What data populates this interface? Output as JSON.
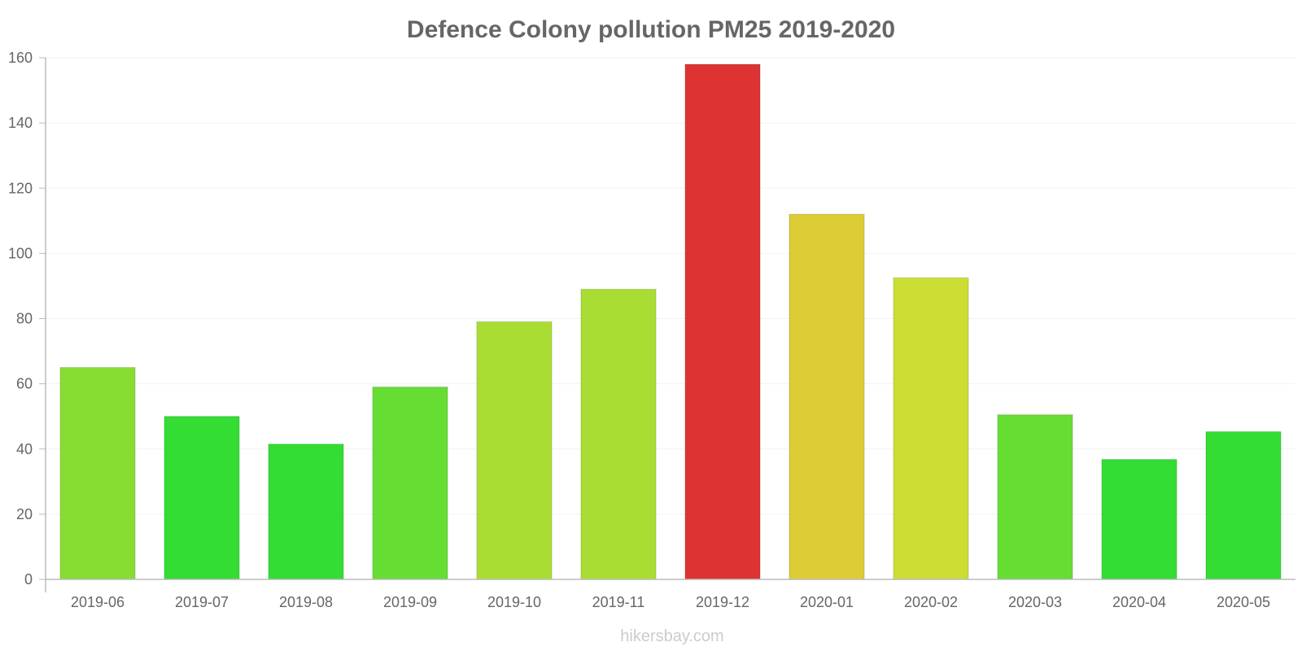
{
  "chart_data": {
    "type": "bar",
    "title": "Defence Colony pollution PM25 2019-2020",
    "xlabel": "",
    "ylabel": "",
    "ylim": [
      0,
      160
    ],
    "yticks": [
      0,
      20,
      40,
      60,
      80,
      100,
      120,
      140,
      160
    ],
    "grid": true,
    "categories": [
      "2019-06",
      "2019-07",
      "2019-08",
      "2019-09",
      "2019-10",
      "2019-11",
      "2019-12",
      "2020-01",
      "2020-02",
      "2020-03",
      "2020-04",
      "2020-05"
    ],
    "values": [
      65,
      50,
      41.5,
      59,
      79,
      89,
      158,
      112,
      92.5,
      50.5,
      36.8,
      45.3
    ],
    "colors": [
      "#88dd33",
      "#33dd33",
      "#33dd33",
      "#66dd33",
      "#aadd33",
      "#aadd33",
      "#dd3333",
      "#ddcc33",
      "#ccdd33",
      "#66dd33",
      "#33dd33",
      "#33dd33"
    ]
  },
  "watermark": "hikersbay.com"
}
